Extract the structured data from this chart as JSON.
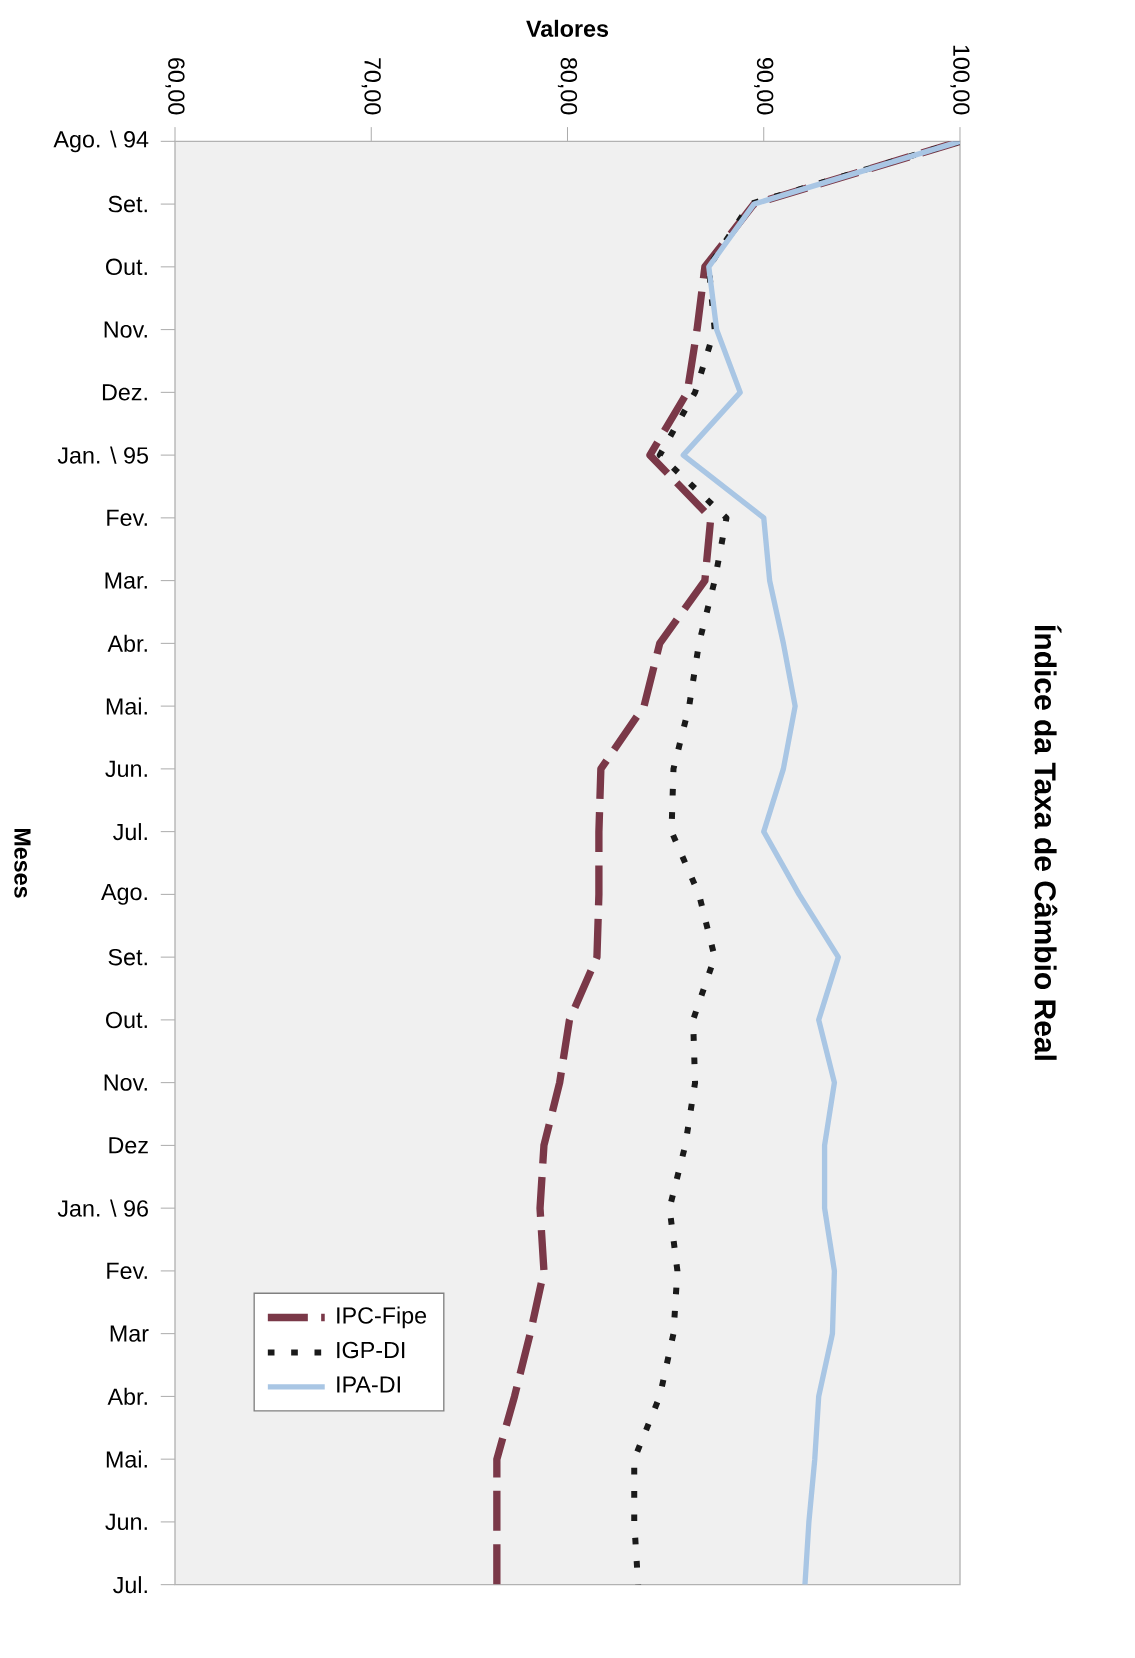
{
  "chart_data": {
    "type": "line",
    "orientation": "horizontal",
    "title": "Índice da Taxa de Câmbio Real",
    "xlabel": "Valores",
    "ylabel": "Meses",
    "categories": [
      "Ago. \\ 94",
      "Set.",
      "Out.",
      "Nov.",
      "Dez.",
      "Jan. \\ 95",
      "Fev.",
      "Mar.",
      "Abr.",
      "Mai.",
      "Jun.",
      "Jul.",
      "Ago.",
      "Set.",
      "Out.",
      "Nov.",
      "Dez",
      "Jan. \\ 96",
      "Fev.",
      "Mar",
      "Abr.",
      "Mai.",
      "Jun.",
      "Jul."
    ],
    "series": [
      {
        "name": "IPC-Fipe",
        "color": "#7a3848",
        "line_style": "dashed",
        "values": [
          100,
          89.5,
          87.0,
          86.6,
          86.1,
          84.2,
          87.3,
          87.0,
          84.7,
          83.9,
          81.7,
          81.6,
          81.6,
          81.5,
          80.1,
          79.6,
          78.8,
          78.6,
          78.8,
          78.1,
          77.3,
          76.4,
          76.4,
          76.4
        ]
      },
      {
        "name": "IGP-DI",
        "color": "#1a1a1a",
        "line_style": "dotted",
        "values": [
          100,
          89.3,
          87.2,
          87.5,
          86.5,
          84.7,
          88.1,
          87.5,
          86.7,
          86.2,
          85.4,
          85.3,
          86.7,
          87.5,
          86.4,
          86.5,
          86.0,
          85.2,
          85.6,
          85.4,
          84.7,
          83.4,
          83.4,
          83.6
        ]
      },
      {
        "name": "IPA-DI",
        "color": "#a9c6e4",
        "line_style": "solid",
        "values": [
          100,
          89.5,
          87.2,
          87.6,
          88.8,
          85.9,
          90.0,
          90.3,
          91.0,
          91.6,
          91.0,
          90.0,
          91.8,
          93.8,
          92.8,
          93.6,
          93.1,
          93.1,
          93.6,
          93.5,
          92.8,
          92.6,
          92.3,
          92.1
        ]
      }
    ],
    "xlim": [
      60,
      100
    ],
    "xticks": [
      {
        "value": 60,
        "label": "60,00"
      },
      {
        "value": 70,
        "label": "70,00"
      },
      {
        "value": 80,
        "label": "80,00"
      },
      {
        "value": 90,
        "label": "90,00"
      },
      {
        "value": 100,
        "label": "100,00"
      }
    ],
    "grid": false,
    "legend": "bottom left",
    "marker": "none"
  }
}
